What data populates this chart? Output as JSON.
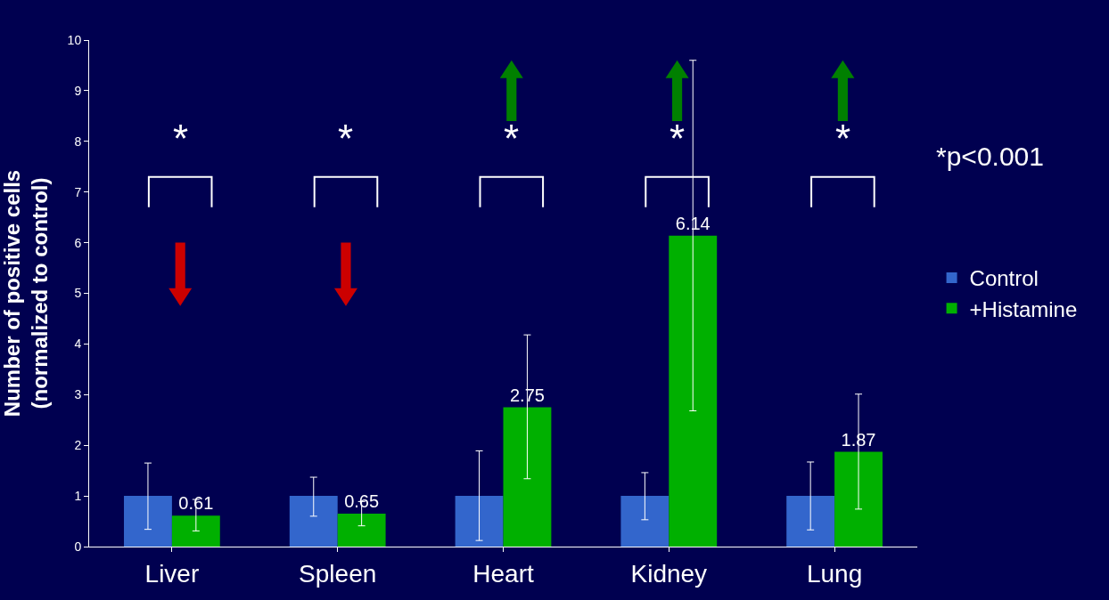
{
  "chart_data": {
    "type": "bar",
    "ylabel": "Number of positive cells\n(normalized to control)",
    "categories": [
      "Liver",
      "Spleen",
      "Heart",
      "Kidney",
      "Lung"
    ],
    "series": [
      {
        "name": "Control",
        "color": "#3366cc",
        "values": [
          1,
          1,
          1,
          1,
          1
        ],
        "errors": [
          [
            0.34,
            1.65
          ],
          [
            0.6,
            1.37
          ],
          [
            0.12,
            1.89
          ],
          [
            0.53,
            1.46
          ],
          [
            0.33,
            1.67
          ]
        ]
      },
      {
        "name": "+Histamine",
        "color": "#00b000",
        "values": [
          0.61,
          0.65,
          2.75,
          6.14,
          1.87
        ],
        "errors": [
          [
            0.31,
            0.93
          ],
          [
            0.41,
            0.89
          ],
          [
            1.34,
            4.18
          ],
          [
            2.68,
            9.6
          ],
          [
            0.74,
            3.01
          ]
        ],
        "value_labels": [
          "0.61",
          "0.65",
          "2.75",
          "6.14",
          "1.87"
        ]
      }
    ],
    "ylim": [
      0,
      10
    ],
    "yticks": [
      0,
      1,
      2,
      3,
      4,
      5,
      6,
      7,
      8,
      9,
      10
    ],
    "grid": false,
    "legend": "right",
    "annotations": [
      "*",
      "*",
      "*",
      "*",
      "*",
      "*p<0.001"
    ]
  }
}
